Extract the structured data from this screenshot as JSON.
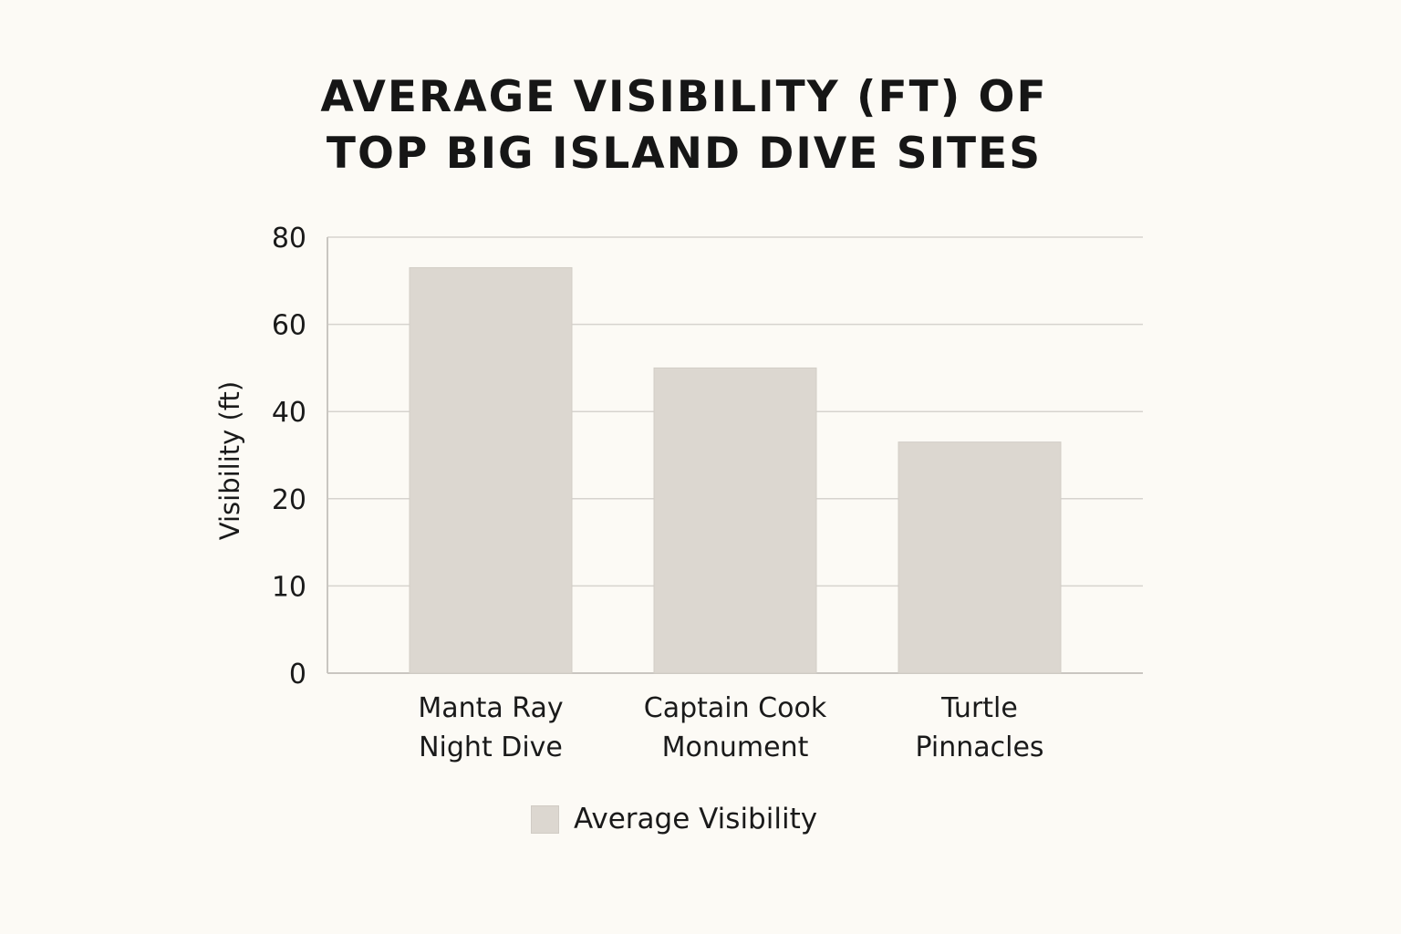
{
  "chart_data": {
    "type": "bar",
    "title": [
      "AVERAGE VISIBILITY (FT) OF",
      "TOP BIG ISLAND DIVE SITES"
    ],
    "xlabel": "",
    "ylabel": "Visibility (ft)",
    "y_ticks": [
      0,
      10,
      20,
      40,
      60,
      80
    ],
    "ylim": [
      0,
      80
    ],
    "grid": true,
    "categories": [
      [
        "Manta Ray",
        "Night Dive"
      ],
      [
        "Captain Cook",
        "Monument"
      ],
      [
        "Turtle",
        "Pinnacles"
      ]
    ],
    "series": [
      {
        "name": "Average Visibility",
        "values": [
          73,
          50,
          33
        ],
        "color": "#dcd7d0"
      }
    ],
    "legend": "bottom-center"
  }
}
